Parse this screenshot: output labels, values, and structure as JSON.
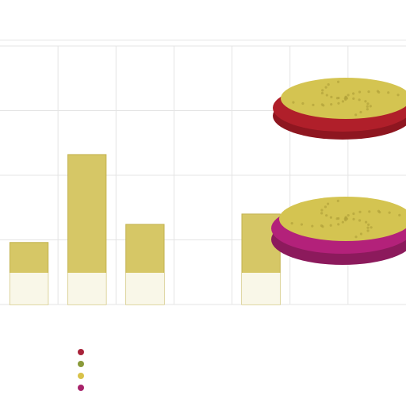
{
  "chart_data": {
    "type": "bar",
    "title": "",
    "subtitle": "",
    "categories": [
      "",
      "",
      "",
      "",
      "",
      "",
      ""
    ],
    "series": [
      {
        "name": "",
        "values": [
          24,
          58,
          31,
          null,
          35,
          null,
          null
        ]
      }
    ],
    "ylabel": "",
    "ylim": [
      0,
      100
    ],
    "grid": true,
    "legend_position": "bottom",
    "legend_entries": [
      {
        "label": "",
        "color": "#a8233a"
      },
      {
        "label": "",
        "color": "#8a9a3a"
      },
      {
        "label": "",
        "color": "#d8c24a"
      },
      {
        "label": "",
        "color": "#a8236a"
      }
    ],
    "pies": [
      {
        "top_color": "#d4c451",
        "base_color": "#b01f2a",
        "rim_color": "#8e1620"
      },
      {
        "top_color": "#d4c451",
        "base_color": "#b3217a",
        "rim_color": "#8c1a5c"
      }
    ],
    "colors": {
      "bar_fill": "#d6c766",
      "bar_stroke": "#c2b24e",
      "grid": "#e4e4e4"
    }
  },
  "header": {
    "title": "",
    "subtitle": ""
  },
  "yaxis_labels": [
    "",
    "",
    "",
    "",
    ""
  ],
  "xaxis_labels": [
    "",
    "",
    "",
    "",
    "",
    "",
    ""
  ]
}
